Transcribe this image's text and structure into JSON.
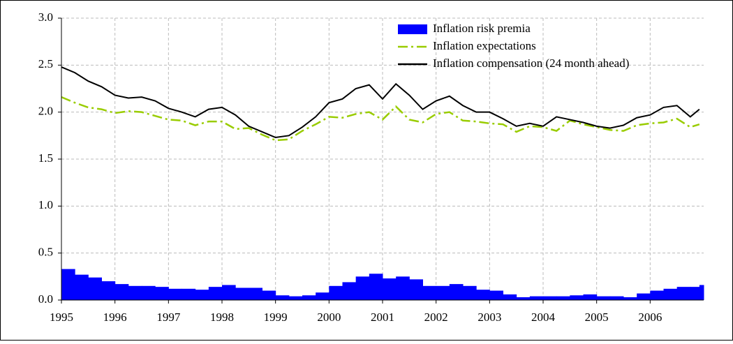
{
  "chart_data": {
    "type": "line",
    "x": [
      1995,
      1995.25,
      1995.5,
      1995.75,
      1996,
      1996.25,
      1996.5,
      1996.75,
      1997,
      1997.25,
      1997.5,
      1997.75,
      1998,
      1998.25,
      1998.5,
      1998.75,
      1999,
      1999.25,
      1999.5,
      1999.75,
      2000,
      2000.25,
      2000.5,
      2000.75,
      2001,
      2001.25,
      2001.5,
      2001.75,
      2002,
      2002.25,
      2002.5,
      2002.75,
      2003,
      2003.25,
      2003.5,
      2003.75,
      2004,
      2004.25,
      2004.5,
      2004.75,
      2005,
      2005.25,
      2005.5,
      2005.75,
      2006,
      2006.25,
      2006.5,
      2006.75,
      2006.92
    ],
    "series": [
      {
        "name": "Inflation risk premia",
        "type": "bar",
        "color": "#0000ff",
        "values": [
          0.33,
          0.27,
          0.24,
          0.2,
          0.17,
          0.15,
          0.15,
          0.14,
          0.12,
          0.12,
          0.11,
          0.14,
          0.16,
          0.13,
          0.13,
          0.1,
          0.05,
          0.04,
          0.05,
          0.08,
          0.15,
          0.19,
          0.25,
          0.28,
          0.23,
          0.25,
          0.22,
          0.15,
          0.15,
          0.17,
          0.15,
          0.11,
          0.1,
          0.06,
          0.03,
          0.04,
          0.04,
          0.04,
          0.05,
          0.06,
          0.04,
          0.04,
          0.03,
          0.07,
          0.1,
          0.12,
          0.14,
          0.14,
          0.16
        ]
      },
      {
        "name": "Inflation expectations",
        "type": "line",
        "dash": true,
        "color": "#99cc00",
        "values": [
          2.16,
          2.1,
          2.05,
          2.03,
          1.99,
          2.01,
          2.0,
          1.96,
          1.92,
          1.91,
          1.86,
          1.9,
          1.9,
          1.82,
          1.83,
          1.76,
          1.7,
          1.71,
          1.8,
          1.87,
          1.95,
          1.94,
          1.98,
          2.0,
          1.92,
          2.06,
          1.92,
          1.89,
          1.98,
          2.0,
          1.91,
          1.9,
          1.88,
          1.87,
          1.79,
          1.85,
          1.84,
          1.8,
          1.91,
          1.87,
          1.84,
          1.81,
          1.8,
          1.86,
          1.88,
          1.89,
          1.93,
          1.84,
          1.87
        ]
      },
      {
        "name": "Inflation compensation (24 month ahead)",
        "type": "line",
        "dash": false,
        "color": "#000000",
        "values": [
          2.48,
          2.42,
          2.33,
          2.27,
          2.18,
          2.15,
          2.16,
          2.12,
          2.04,
          2.0,
          1.95,
          2.03,
          2.05,
          1.97,
          1.85,
          1.79,
          1.73,
          1.75,
          1.84,
          1.95,
          2.1,
          2.14,
          2.25,
          2.29,
          2.14,
          2.3,
          2.18,
          2.03,
          2.12,
          2.17,
          2.07,
          2.0,
          2.0,
          1.93,
          1.85,
          1.88,
          1.85,
          1.95,
          1.92,
          1.89,
          1.85,
          1.83,
          1.86,
          1.94,
          1.97,
          2.05,
          2.07,
          1.95,
          2.03
        ]
      }
    ],
    "xlim": [
      1995,
      2007
    ],
    "xticks": [
      1995,
      1996,
      1997,
      1998,
      1999,
      2000,
      2001,
      2002,
      2003,
      2004,
      2005,
      2006
    ],
    "ylim": [
      0,
      3
    ],
    "yticks": [
      {
        "value": 0,
        "label": "0.0"
      },
      0.5,
      {
        "value": 1,
        "label": "1.0"
      },
      1.5,
      {
        "value": 2,
        "label": "2.0"
      },
      2.5,
      {
        "value": 3,
        "label": "3.0"
      }
    ],
    "grid": true,
    "legend": "upper right"
  }
}
